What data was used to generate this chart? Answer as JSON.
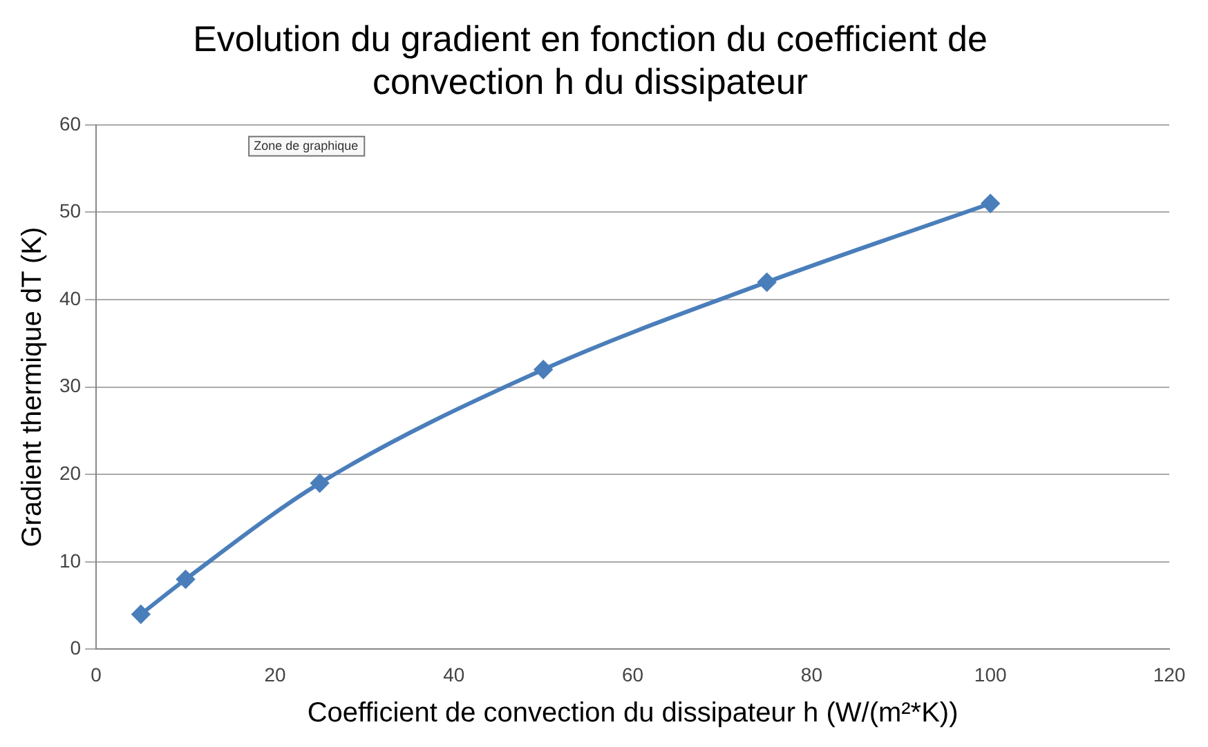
{
  "chart_data": {
    "type": "line",
    "title": "Evolution du gradient en fonction du coefficient de convection h du dissipateur",
    "xlabel": "Coefficient de convection du dissipateur h (W/(m²*K))",
    "ylabel": "Gradient thermique dT (K)",
    "x": [
      5,
      10,
      25,
      50,
      75,
      100
    ],
    "series": [
      {
        "color": "#4a7ebb",
        "values": [
          4,
          8,
          19,
          32,
          42,
          51
        ]
      }
    ],
    "xlim": [
      0,
      120
    ],
    "xticks": [
      0,
      20,
      40,
      60,
      80,
      100,
      120
    ],
    "ylim": [
      0,
      60
    ],
    "yticks": [
      0,
      10,
      20,
      30,
      40,
      50,
      60
    ],
    "grid": "y",
    "legend": false,
    "marker": "diamond",
    "line_style": "solid",
    "annotations": [
      "Zone de graphique"
    ]
  }
}
